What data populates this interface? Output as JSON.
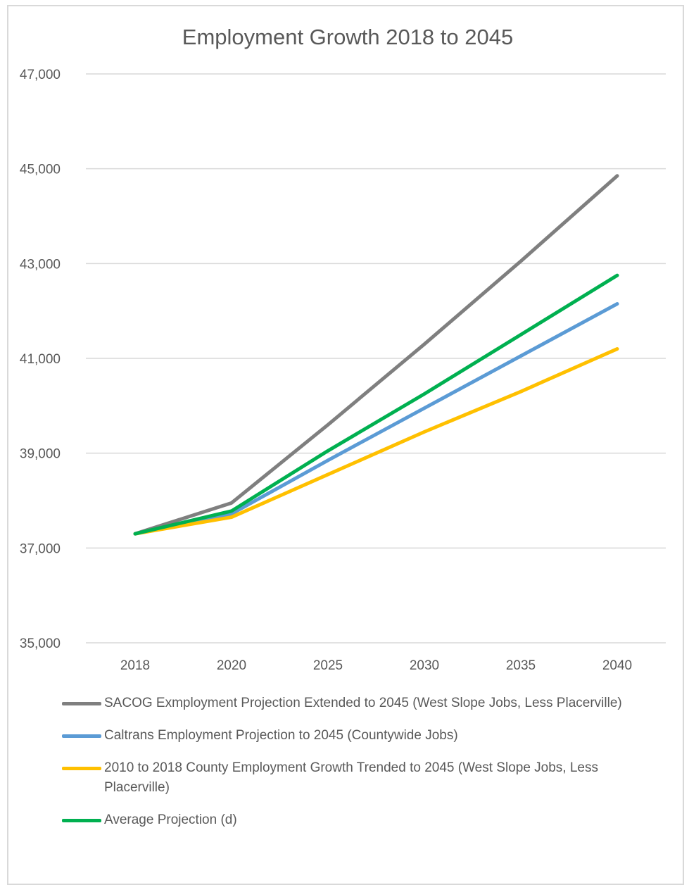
{
  "chart_data": {
    "type": "line",
    "title": "Employment Growth 2018 to 2045",
    "xlabel": "",
    "ylabel": "",
    "categories": [
      "2018",
      "2020",
      "2025",
      "2030",
      "2035",
      "2040"
    ],
    "ylim": [
      35000,
      47000
    ],
    "yticks": [
      35000,
      37000,
      39000,
      41000,
      43000,
      45000,
      47000
    ],
    "ytick_labels": [
      "35,000",
      "37,000",
      "39,000",
      "41,000",
      "43,000",
      "45,000",
      "47,000"
    ],
    "grid": "horizontal",
    "legend_position": "bottom",
    "series": [
      {
        "name": "SACOG Exmployment Projection Extended to 2045 (West Slope Jobs, Less Placerville)",
        "color": "#7f7f7f",
        "values": [
          37300,
          37950,
          39600,
          41300,
          43050,
          44850
        ]
      },
      {
        "name": "Caltrans Employment Projection to 2045 (Countywide Jobs)",
        "color": "#5b9bd5",
        "values": [
          37300,
          37720,
          38850,
          39950,
          41050,
          42150
        ]
      },
      {
        "name": "2010 to 2018 County Employment Growth Trended to 2045 (West Slope Jobs, Less Placerville)",
        "color": "#ffc000",
        "values": [
          37300,
          37650,
          38550,
          39450,
          40300,
          41200
        ]
      },
      {
        "name": "Average Projection (d)",
        "color": "#00b050",
        "values": [
          37300,
          37780,
          39050,
          40250,
          41500,
          42750
        ]
      }
    ]
  }
}
